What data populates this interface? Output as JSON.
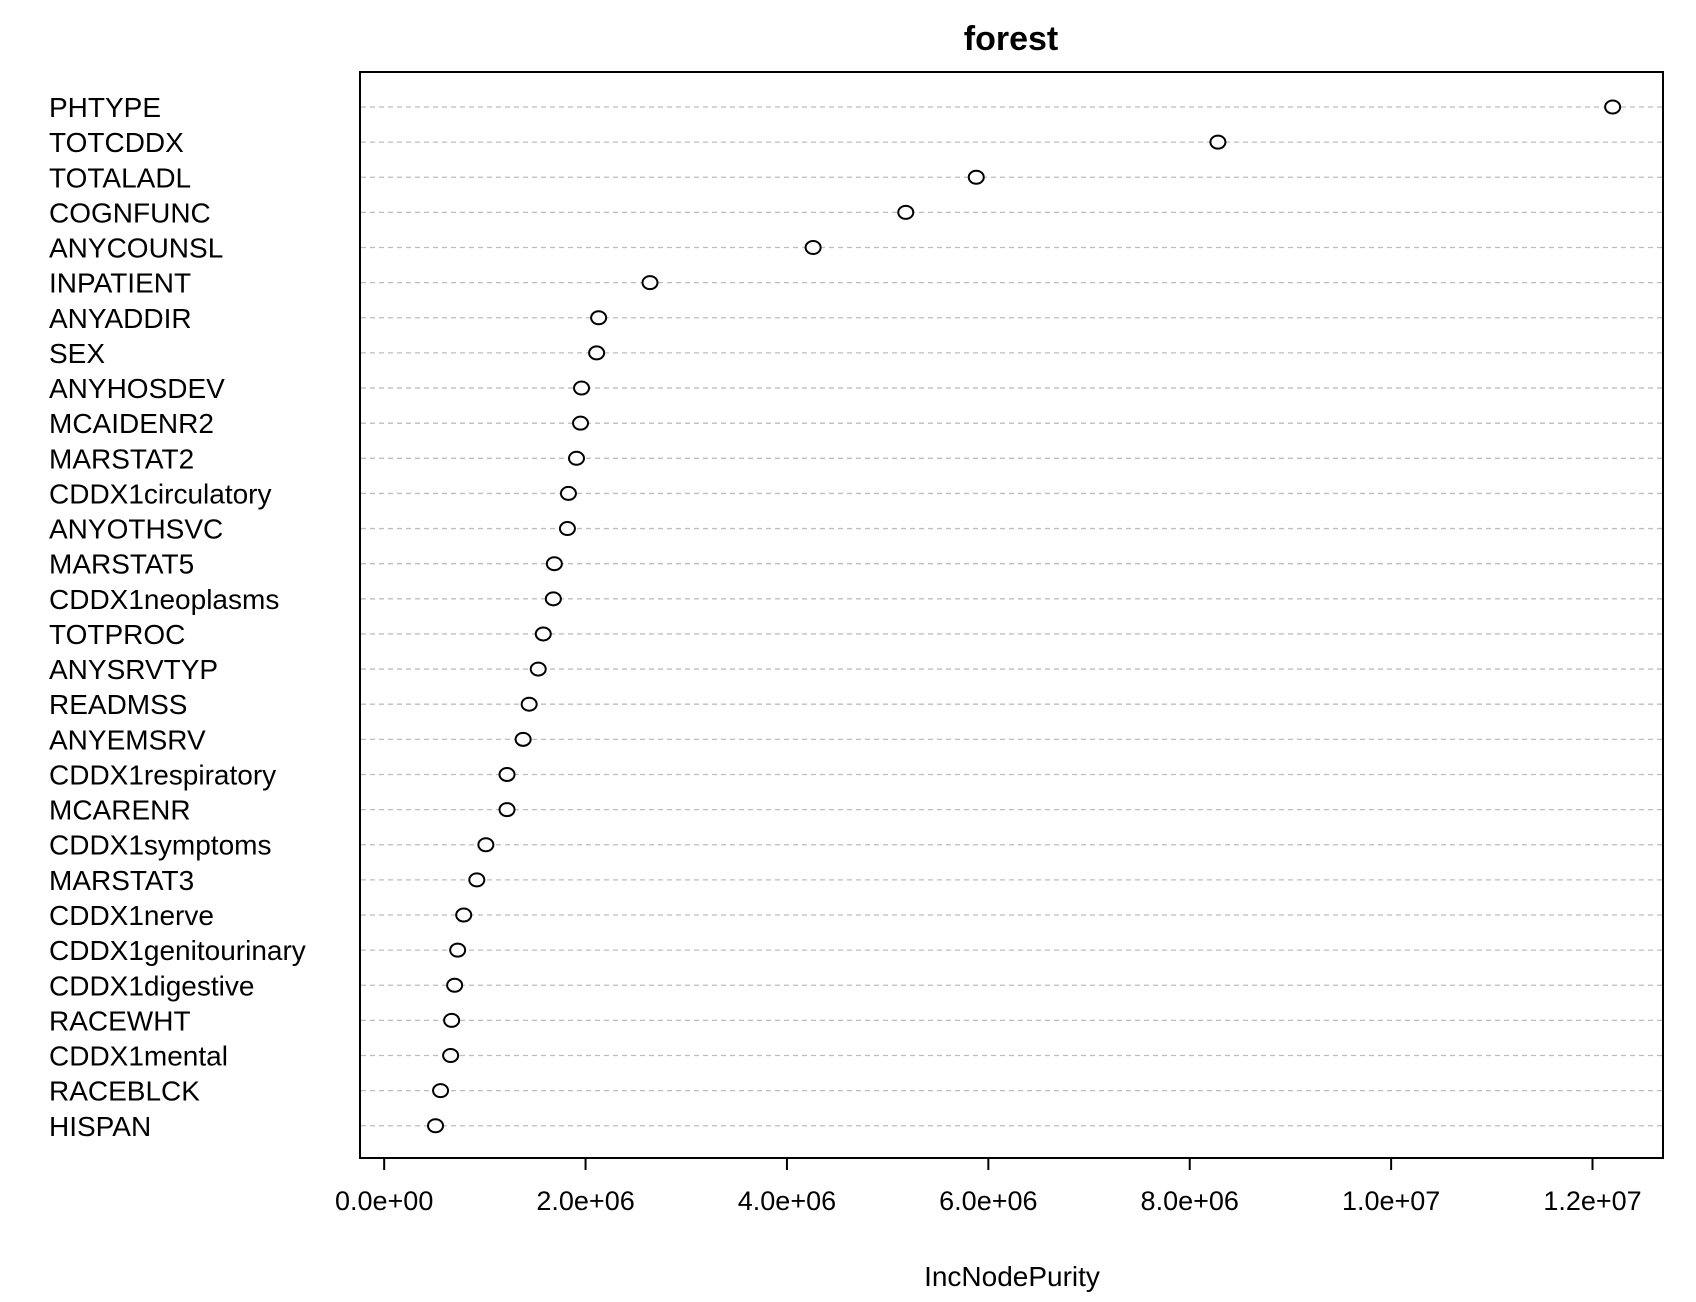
{
  "chart_data": {
    "type": "scatter",
    "title": "forest",
    "xlabel": "IncNodePurity",
    "ylabel": "",
    "xlim": [
      -240000,
      12700000
    ],
    "xticks": [
      0,
      2000000,
      4000000,
      6000000,
      8000000,
      10000000,
      12000000
    ],
    "xtick_labels": [
      "0.0e+00",
      "2.0e+06",
      "4.0e+06",
      "6.0e+06",
      "8.0e+06",
      "1.0e+07",
      "1.2e+07"
    ],
    "grid": "dashed horizontal guide per variable",
    "marker": "open circle",
    "categories": [
      "PHTYPE",
      "TOTCDDX",
      "TOTALADL",
      "COGNFUNC",
      "ANYCOUNSL",
      "INPATIENT",
      "ANYADDIR",
      "SEX",
      "ANYHOSDEV",
      "MCAIDENR2",
      "MARSTAT2",
      "CDDX1circulatory",
      "ANYOTHSVC",
      "MARSTAT5",
      "CDDX1neoplasms",
      "TOTPROC",
      "ANYSRVTYP",
      "READMSS",
      "ANYEMSRV",
      "CDDX1respiratory",
      "MCARENR",
      "CDDX1symptoms",
      "MARSTAT3",
      "CDDX1nerve",
      "CDDX1genitourinary",
      "CDDX1digestive",
      "RACEWHT",
      "CDDX1mental",
      "RACEBLCK",
      "HISPAN"
    ],
    "values": [
      12200000,
      8280000,
      5880000,
      5180000,
      4260000,
      2640000,
      2130000,
      2110000,
      1960000,
      1950000,
      1910000,
      1830000,
      1820000,
      1690000,
      1680000,
      1580000,
      1530000,
      1440000,
      1380000,
      1220000,
      1220000,
      1010000,
      920000,
      790000,
      730000,
      700000,
      670000,
      660000,
      560000,
      510000
    ]
  }
}
